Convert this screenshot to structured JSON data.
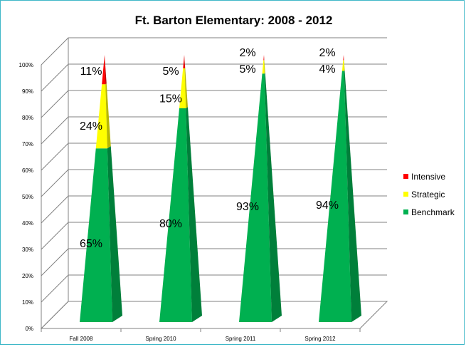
{
  "chart_data": {
    "type": "bar",
    "title": "Ft. Barton Elementary:  2008 - 2012",
    "xlabel": "",
    "ylabel": "",
    "stacked": true,
    "ylim": [
      0,
      100
    ],
    "y_ticks": [
      "0%",
      "10%",
      "20%",
      "30%",
      "40%",
      "50%",
      "60%",
      "70%",
      "80%",
      "90%",
      "100%"
    ],
    "categories": [
      "Fall 2008",
      "Spring 2010",
      "Spring 2011",
      "Spring 2012"
    ],
    "series": [
      {
        "name": "Benchmark",
        "values": [
          65,
          80,
          93,
          94
        ],
        "labels": [
          "65%",
          "80%",
          "93%",
          "94%"
        ],
        "color": "#00b050"
      },
      {
        "name": "Strategic",
        "values": [
          24,
          15,
          5,
          4
        ],
        "labels": [
          "24%",
          "15%",
          "5%",
          "4%"
        ],
        "color": "#ffff00"
      },
      {
        "name": "Intensive",
        "values": [
          11,
          5,
          2,
          2
        ],
        "labels": [
          "11%",
          "5%",
          "2%",
          "2%"
        ],
        "color": "#ff0000"
      }
    ],
    "legend": [
      {
        "name": "Intensive",
        "color": "#ff0000"
      },
      {
        "name": "Strategic",
        "color": "#ffff00"
      },
      {
        "name": "Benchmark",
        "color": "#00b050"
      }
    ],
    "legend_position": "right",
    "grid": true
  }
}
